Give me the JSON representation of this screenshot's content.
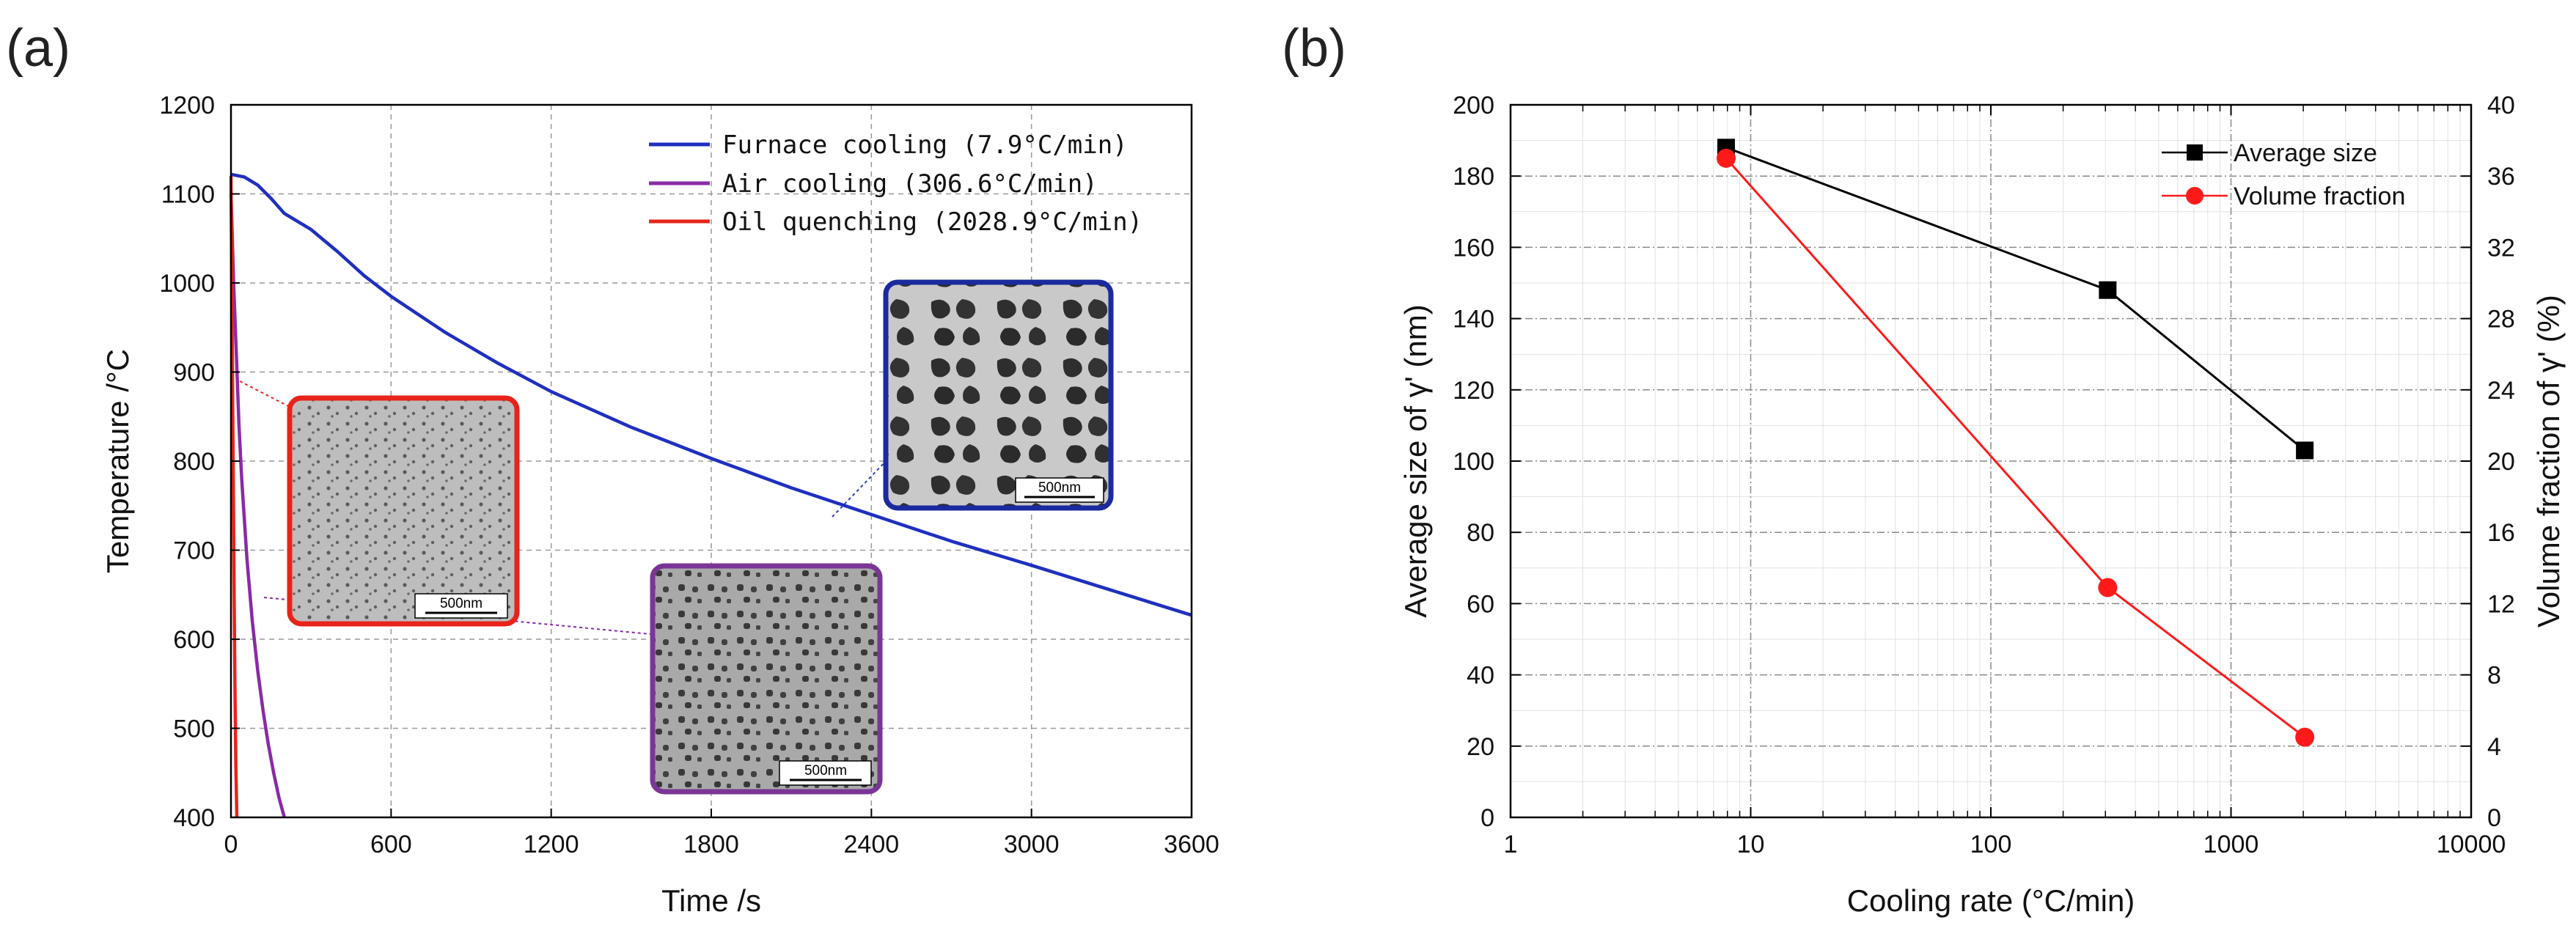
{
  "panels": {
    "a": "(a)",
    "b": "(b)"
  },
  "chart_data": [
    {
      "id": "a",
      "type": "line",
      "xlabel": "Time /s",
      "ylabel": "Temperature /°C",
      "xlim": [
        0,
        3600
      ],
      "ylim": [
        400,
        1200
      ],
      "xticks": [
        0,
        600,
        1200,
        1800,
        2400,
        3000,
        3600
      ],
      "yticks": [
        400,
        500,
        600,
        700,
        800,
        900,
        1000,
        1100,
        1200
      ],
      "grid": true,
      "legend_position": "top-right",
      "series": [
        {
          "name": "Furnace cooling (7.9°C/min)",
          "color": "#1f2fbf",
          "x": [
            0,
            50,
            100,
            150,
            200,
            300,
            400,
            500,
            600,
            800,
            1000,
            1200,
            1500,
            1800,
            2100,
            2400,
            2700,
            3000,
            3300,
            3600
          ],
          "y": [
            1122,
            1119,
            1110,
            1095,
            1078,
            1060,
            1035,
            1008,
            985,
            945,
            910,
            878,
            838,
            803,
            770,
            740,
            710,
            683,
            655,
            627
          ]
        },
        {
          "name": "Air cooling (306.6°C/min)",
          "color": "#8a2aa6",
          "x": [
            0,
            10,
            20,
            30,
            40,
            60,
            80,
            100,
            120,
            140,
            160,
            180,
            200
          ],
          "y": [
            1100,
            1000,
            920,
            840,
            780,
            690,
            620,
            565,
            520,
            482,
            450,
            422,
            400
          ]
        },
        {
          "name": "Oil quenching (2028.9°C/min)",
          "color": "#e8231a",
          "x": [
            0,
            3,
            6,
            9,
            12,
            15,
            18,
            22
          ],
          "y": [
            1120,
            1000,
            880,
            760,
            640,
            540,
            460,
            400
          ]
        }
      ],
      "insets": [
        {
          "name": "oil-quenched microstructure",
          "scale_bar": "500nm",
          "border": "#e8231a"
        },
        {
          "name": "furnace-cooled microstructure",
          "scale_bar": "500nm",
          "border": "#1a2a9e"
        },
        {
          "name": "air-cooled microstructure",
          "scale_bar": "500nm",
          "border": "#7a3596"
        }
      ]
    },
    {
      "id": "b",
      "type": "line",
      "xscale": "log",
      "xlabel": "Cooling rate (°C/min)",
      "ylabel": "Average size of γ' (nm)",
      "y2label": "Volume fraction of γ' (%)",
      "xlim": [
        1,
        10000
      ],
      "ylim": [
        0,
        200
      ],
      "y2lim": [
        0,
        40
      ],
      "xticks": [
        1,
        10,
        100,
        1000,
        10000
      ],
      "xtick_labels": [
        "1",
        "10",
        "100",
        "1000",
        "10000"
      ],
      "yticks": [
        0,
        20,
        40,
        60,
        80,
        100,
        120,
        140,
        160,
        180,
        200
      ],
      "y2ticks": [
        0,
        4,
        8,
        12,
        16,
        20,
        24,
        28,
        32,
        36,
        40
      ],
      "grid": true,
      "legend_position": "top-right",
      "series": [
        {
          "name": "Average size",
          "axis": "left",
          "marker": "square",
          "color": "#000000",
          "x": [
            7.9,
            306.6,
            2028.9
          ],
          "y": [
            188,
            148,
            103
          ]
        },
        {
          "name": "Volume fraction",
          "axis": "right",
          "marker": "circle",
          "color": "#ff1a1a",
          "x": [
            7.9,
            306.6,
            2028.9
          ],
          "y": [
            37,
            12.9,
            4.5
          ]
        }
      ]
    }
  ]
}
